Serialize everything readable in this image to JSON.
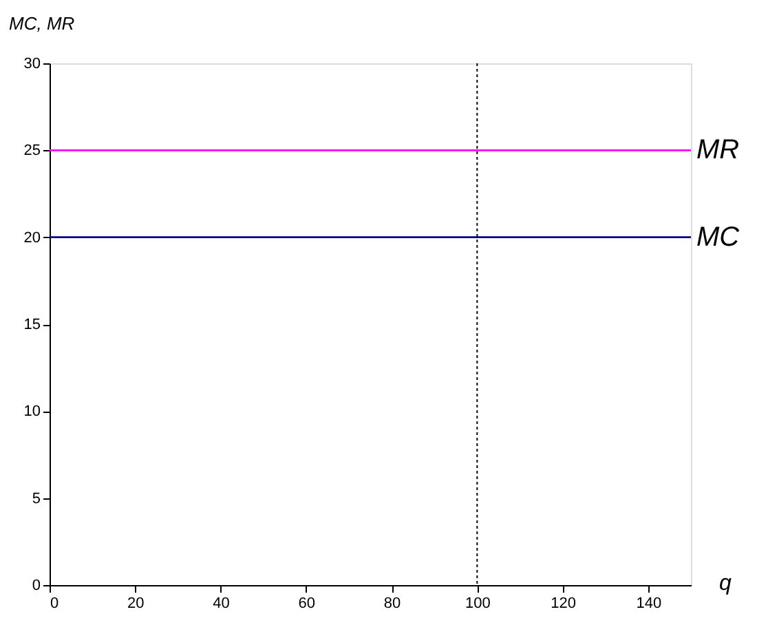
{
  "chart_data": {
    "type": "line",
    "xlabel": "q",
    "ylabel": "MC, MR",
    "x": [
      0,
      150
    ],
    "series": [
      {
        "name": "MR",
        "color": "#ff00ff",
        "values": [
          25,
          25
        ]
      },
      {
        "name": "MC",
        "color": "#000080",
        "values": [
          20,
          20
        ]
      }
    ],
    "xlim": [
      0,
      150
    ],
    "xticks": [
      0,
      20,
      40,
      60,
      80,
      100,
      120,
      140
    ],
    "ylim": [
      0,
      30
    ],
    "yticks": [
      0,
      5,
      10,
      15,
      20,
      25,
      30
    ],
    "ref_lines": [
      {
        "axis": "x",
        "value": 100,
        "color": "#000000",
        "line_style": "dotted"
      }
    ],
    "grid": false,
    "legend": false,
    "marker": "none",
    "line_style": "solid"
  }
}
